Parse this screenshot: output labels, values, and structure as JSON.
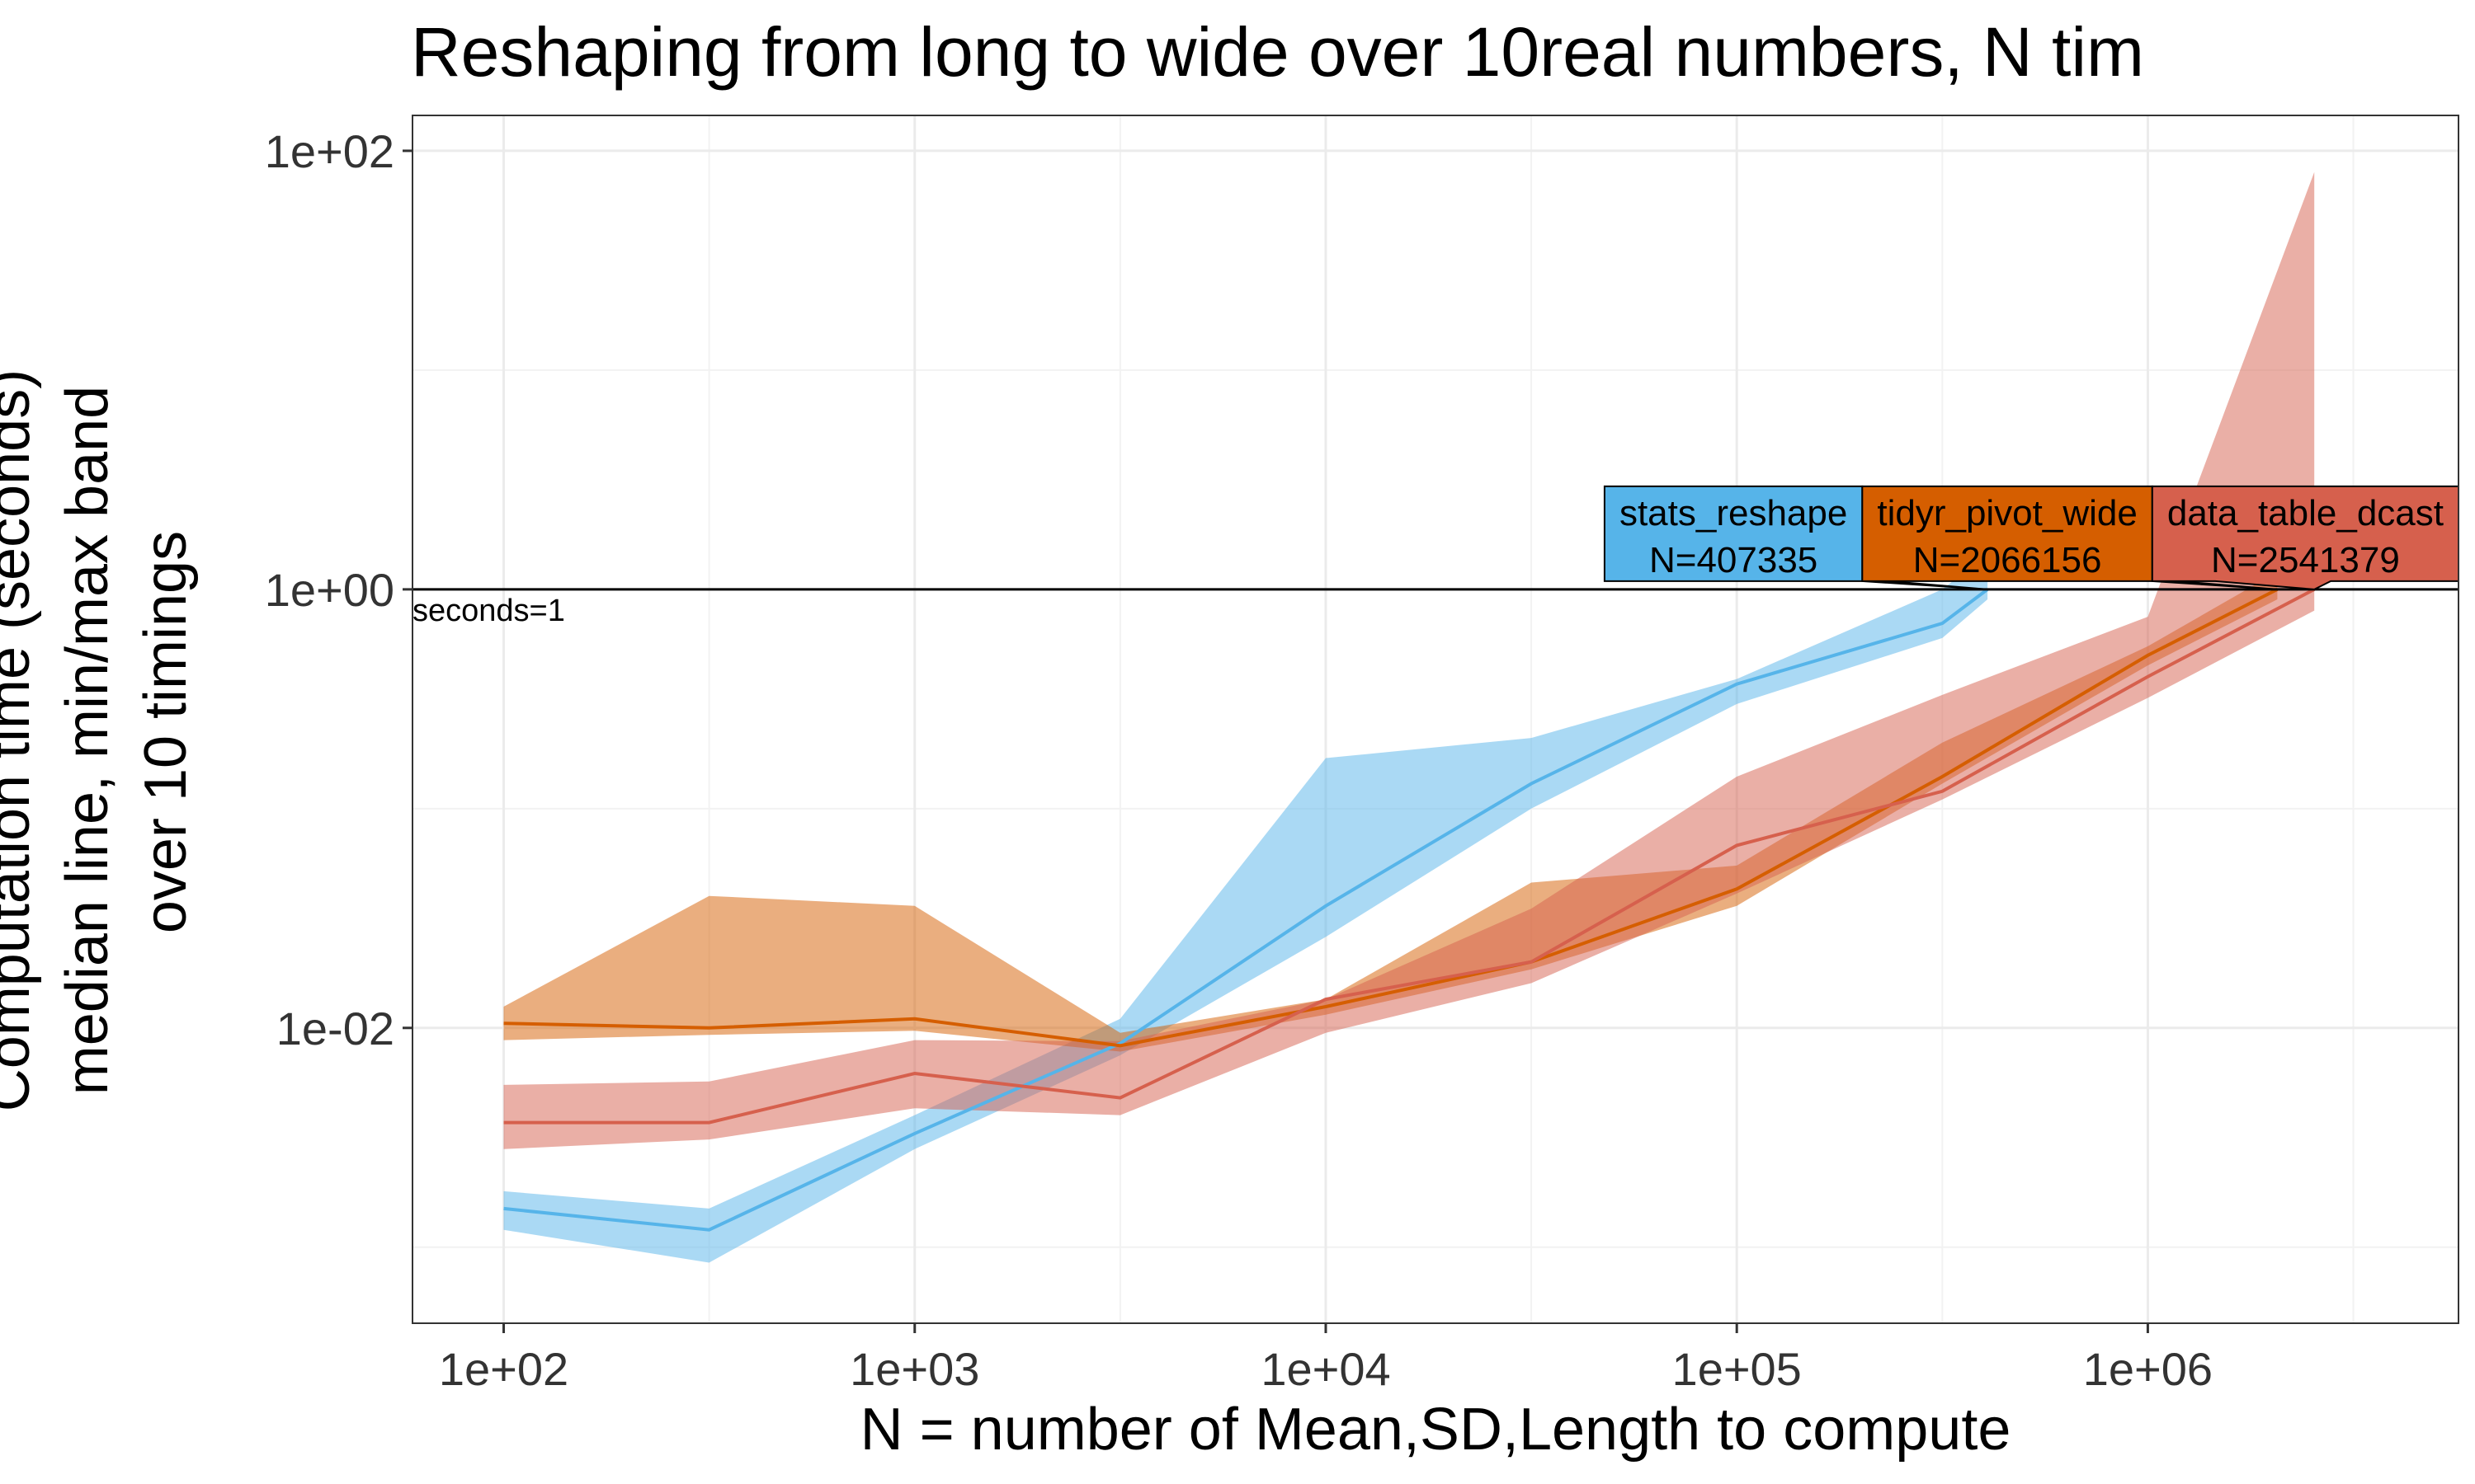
{
  "chart_data": {
    "type": "line",
    "title": "Reshaping from long to wide over 10real numbers, N tim",
    "xlabel": "N = number of Mean,SD,Length to compute",
    "ylabel_lines": [
      "Computation time (seconds)",
      "median line, min/max band",
      "over 10 timings"
    ],
    "x_scale": "log10",
    "y_scale": "log10",
    "xlim": [
      60,
      5700000
    ],
    "ylim": [
      0.00045,
      145
    ],
    "x_ticks": [
      100,
      1000,
      10000,
      100000,
      1000000
    ],
    "x_tick_labels": [
      "1e+02",
      "1e+03",
      "1e+04",
      "1e+05",
      "1e+06"
    ],
    "y_ticks": [
      0.01,
      1,
      100
    ],
    "y_tick_labels": [
      "1e-02",
      "1e+00",
      "1e+02"
    ],
    "grid": true,
    "reference_line": {
      "y": 1,
      "label": "seconds=1"
    },
    "series": [
      {
        "name": "stats_reshape",
        "color": "#56B4E9",
        "direct_label": "stats_reshape",
        "direct_label_n": "N=407335",
        "label_x": 407335,
        "x": [
          100,
          316,
          1000,
          3162,
          10000,
          31623,
          100000,
          316228,
          407335
        ],
        "median": [
          0.0015,
          0.0012,
          0.0033,
          0.0085,
          0.036,
          0.13,
          0.37,
          0.7,
          1.0
        ],
        "min": [
          0.0012,
          0.00085,
          0.0028,
          0.0075,
          0.026,
          0.1,
          0.3,
          0.6,
          0.9
        ],
        "max": [
          0.0018,
          0.0015,
          0.004,
          0.011,
          0.17,
          0.21,
          0.39,
          1.0,
          1.45
        ]
      },
      {
        "name": "tidyr_pivot_wide",
        "color": "#D55E00",
        "direct_label": "tidyr_pivot_wide",
        "direct_label_n": "N=2066156",
        "label_x": 2066156,
        "x": [
          100,
          316,
          1000,
          3162,
          10000,
          31623,
          100000,
          316228,
          1000000,
          2066156
        ],
        "median": [
          0.0105,
          0.01,
          0.011,
          0.0083,
          0.0125,
          0.02,
          0.043,
          0.14,
          0.5,
          1.0
        ],
        "min": [
          0.0088,
          0.0093,
          0.0097,
          0.0078,
          0.0115,
          0.0185,
          0.036,
          0.13,
          0.45,
          0.9
        ],
        "max": [
          0.0125,
          0.04,
          0.036,
          0.0095,
          0.0135,
          0.046,
          0.055,
          0.2,
          0.55,
          1.2
        ]
      },
      {
        "name": "data_table_dcast",
        "color": "#D6604D",
        "direct_label": "data_table_dcast",
        "direct_label_n": "N=2541379",
        "label_x": 2541379,
        "x": [
          100,
          316,
          1000,
          3162,
          10000,
          31623,
          100000,
          316228,
          1000000,
          2541379
        ],
        "median": [
          0.0037,
          0.0037,
          0.0062,
          0.0048,
          0.0135,
          0.02,
          0.068,
          0.12,
          0.4,
          1.0
        ],
        "min": [
          0.0028,
          0.0031,
          0.0043,
          0.004,
          0.0095,
          0.016,
          0.041,
          0.11,
          0.32,
          0.8
        ],
        "max": [
          0.0055,
          0.0057,
          0.0088,
          0.0087,
          0.0135,
          0.035,
          0.14,
          0.33,
          0.75,
          80
        ]
      }
    ]
  }
}
